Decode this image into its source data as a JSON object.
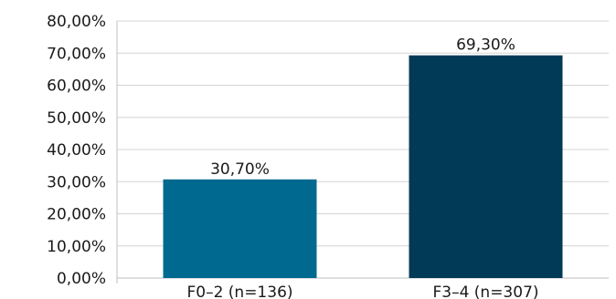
{
  "chart_data": {
    "type": "bar",
    "categories": [
      "F0–2 (n=136)",
      "F3–4 (n=307)"
    ],
    "values": [
      30.7,
      69.3
    ],
    "value_labels": [
      "30,70%",
      "69,30%"
    ],
    "bar_colors": [
      "#006990",
      "#003a57"
    ],
    "ylim": [
      0,
      80
    ],
    "yticks": [
      0,
      10,
      20,
      30,
      40,
      50,
      60,
      70,
      80
    ],
    "ytick_labels": [
      "0,00%",
      "10,00%",
      "20,00%",
      "30,00%",
      "40,00%",
      "50,00%",
      "60,00%",
      "70,00%",
      "80,00%"
    ],
    "grid": true,
    "legend": false,
    "title": "",
    "xlabel": "",
    "ylabel": ""
  }
}
